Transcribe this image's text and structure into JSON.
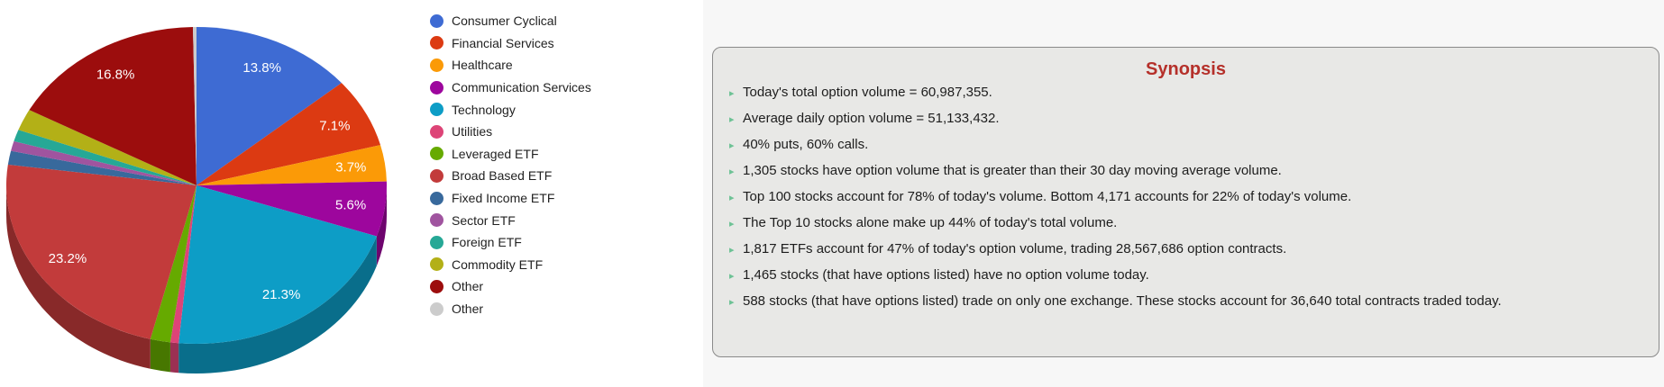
{
  "chart_data": {
    "type": "pie",
    "style": "3d",
    "direction": "clockwise",
    "start_angle": "12 o'clock",
    "labels_format": "percent",
    "legend_position": "right",
    "slices": [
      {
        "label": "Consumer Cyclical",
        "value": 13.8,
        "pct_label": "13.8%",
        "color": "#3e6bd3"
      },
      {
        "label": "Financial Services",
        "value": 7.1,
        "pct_label": "7.1%",
        "color": "#dc3a12"
      },
      {
        "label": "Healthcare",
        "value": 3.7,
        "pct_label": "3.7%",
        "color": "#fb9a07"
      },
      {
        "label": "Communication Services",
        "value": 5.6,
        "pct_label": "5.6%",
        "color": "#9d069d"
      },
      {
        "label": "Technology",
        "value": 21.3,
        "pct_label": "21.3%",
        "color": "#0d9dc6"
      },
      {
        "label": "Utilities",
        "value": 0.7,
        "pct_label": "",
        "color": "#dd4477"
      },
      {
        "label": "Leveraged ETF",
        "value": 1.7,
        "pct_label": "",
        "color": "#66aa00"
      },
      {
        "label": "Broad Based ETF",
        "value": 23.2,
        "pct_label": "23.2%",
        "color": "#c23b3b"
      },
      {
        "label": "Fixed Income ETF",
        "value": 1.4,
        "pct_label": "",
        "color": "#38699c"
      },
      {
        "label": "Sector ETF",
        "value": 1.0,
        "pct_label": "",
        "color": "#a0549f"
      },
      {
        "label": "Foreign ETF",
        "value": 1.2,
        "pct_label": "",
        "color": "#26a896"
      },
      {
        "label": "Commodity ETF",
        "value": 2.2,
        "pct_label": "",
        "color": "#b3b017"
      },
      {
        "label": "Other",
        "value": 16.8,
        "pct_label": "16.8%",
        "color": "#9c0d0d"
      },
      {
        "label": "Other",
        "value": 0.3,
        "pct_label": "",
        "color": "#cccccc"
      }
    ]
  },
  "synopsis": {
    "title": "Synopsis",
    "items": [
      "Today's total option volume = 60,987,355.",
      "Average daily option volume = 51,133,432.",
      "40% puts, 60% calls.",
      "1,305 stocks have option volume that is greater than their 30 day moving average volume.",
      "Top 100 stocks account for 78% of today's volume. Bottom 4,171 accounts for 22% of today's volume.",
      "The Top 10 stocks alone make up 44% of today's total volume.",
      "1,817 ETFs account for 47% of today's option volume, trading 28,567,686 option contracts.",
      "1,465 stocks (that have options listed) have no option volume today.",
      "588 stocks (that have options listed) trade on only one exchange. These stocks account for 36,640 total contracts traded today."
    ]
  },
  "colors": {
    "synopsis_title": "#b5302a",
    "bullet_arrow": "#6dc295",
    "panel_bg": "#e8e8e6",
    "panel_border": "#8a8a8a",
    "right_bg": "#f7f7f7",
    "pie_label_text": "#ffffff",
    "legend_text": "#222222"
  }
}
